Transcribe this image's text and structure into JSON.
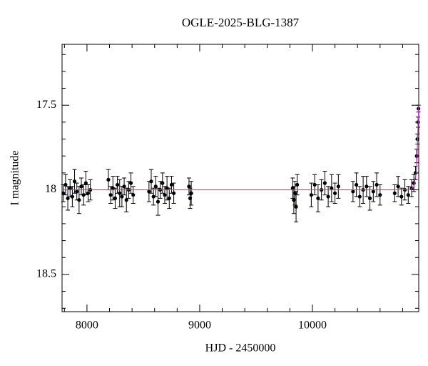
{
  "chart_data": {
    "type": "errorbar-scatter",
    "title": "OGLE-2025-BLG-1387",
    "x_label": "HJD - 2450000",
    "y_label": "I magnitude",
    "xlim": [
      7779,
      10943
    ],
    "ylim": [
      18.72,
      17.14
    ],
    "xticks": [
      8000,
      9000,
      10000
    ],
    "yticks": [
      17.5,
      18,
      18.5
    ],
    "xminorticks": [
      7800,
      8200,
      8400,
      8600,
      8800,
      9200,
      9400,
      9600,
      9800,
      10200,
      10400,
      10600,
      10800
    ],
    "yminorticks": [
      17.2,
      17.3,
      17.4,
      17.6,
      17.7,
      17.8,
      17.9,
      18.1,
      18.2,
      18.3,
      18.4,
      18.6,
      18.7
    ],
    "series": [
      {
        "color": "#000000",
        "x": [
          7790,
          7810,
          7830,
          7850,
          7870,
          7890,
          7910,
          7930,
          7950,
          7970,
          7990,
          8010,
          8030,
          8190,
          8210,
          8230,
          8250,
          8270,
          8290,
          8310,
          8330,
          8350,
          8370,
          8390,
          8410,
          8550,
          8570,
          8590,
          8610,
          8630,
          8650,
          8670,
          8690,
          8710,
          8730,
          8750,
          8770,
          8905,
          8915,
          8925,
          9825,
          9835,
          9845,
          9855,
          9865,
          9990,
          10020,
          10050,
          10080,
          10110,
          10140,
          10170,
          10200,
          10230,
          10360,
          10390,
          10420,
          10450,
          10480,
          10510,
          10540,
          10570,
          10600,
          10730,
          10760,
          10790,
          10820,
          10850,
          10880,
          10900,
          10915,
          10925,
          10932,
          10937,
          10941
        ],
        "values": [
          18.02,
          17.97,
          18.05,
          17.99,
          18.04,
          17.95,
          18.01,
          18.06,
          17.98,
          18.03,
          17.96,
          18.02,
          18.0,
          17.94,
          18.03,
          17.99,
          18.05,
          17.97,
          18.02,
          18.04,
          17.98,
          18.06,
          18.0,
          17.96,
          18.03,
          18.01,
          17.95,
          18.04,
          17.98,
          18.07,
          18.0,
          17.96,
          18.03,
          17.99,
          18.05,
          17.97,
          18.02,
          17.98,
          18.05,
          18.02,
          17.99,
          18.06,
          18.02,
          18.1,
          17.97,
          18.03,
          17.97,
          18.05,
          18.0,
          17.96,
          18.04,
          17.99,
          18.02,
          17.98,
          18.01,
          17.97,
          18.04,
          18.0,
          17.98,
          18.05,
          18.01,
          17.97,
          18.03,
          18.02,
          17.98,
          18.04,
          18.0,
          18.03,
          17.99,
          17.96,
          17.9,
          17.8,
          17.7,
          17.6,
          17.52
        ],
        "errors": [
          0.05,
          0.06,
          0.07,
          0.05,
          0.06,
          0.07,
          0.05,
          0.08,
          0.05,
          0.06,
          0.07,
          0.05,
          0.06,
          0.06,
          0.05,
          0.07,
          0.06,
          0.05,
          0.08,
          0.06,
          0.05,
          0.07,
          0.05,
          0.06,
          0.05,
          0.06,
          0.07,
          0.05,
          0.06,
          0.08,
          0.05,
          0.06,
          0.05,
          0.07,
          0.06,
          0.05,
          0.06,
          0.05,
          0.06,
          0.07,
          0.06,
          0.08,
          0.07,
          0.09,
          0.06,
          0.07,
          0.06,
          0.08,
          0.06,
          0.07,
          0.06,
          0.08,
          0.06,
          0.07,
          0.06,
          0.07,
          0.06,
          0.08,
          0.06,
          0.07,
          0.06,
          0.07,
          0.06,
          0.05,
          0.06,
          0.05,
          0.06,
          0.05,
          0.05,
          0.05,
          0.04,
          0.04,
          0.03,
          0.03,
          0.02
        ]
      }
    ],
    "model": {
      "color": "#cc33cc",
      "x": [
        7779,
        10870,
        10900,
        10920,
        10930,
        10937,
        10943
      ],
      "values": [
        18.0,
        18.0,
        17.98,
        17.9,
        17.78,
        17.62,
        17.5
      ]
    }
  }
}
